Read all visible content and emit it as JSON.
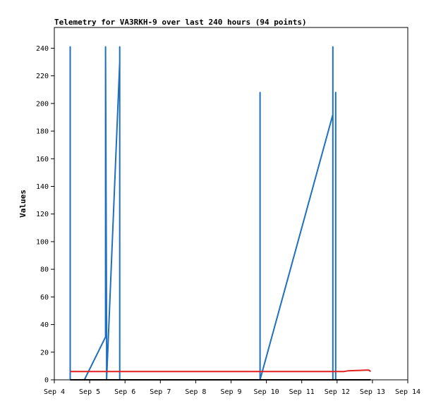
{
  "chart_data": {
    "type": "line",
    "title": "Telemetry for VA3RKH-9 over last 240 hours (94 points)",
    "xlabel": "",
    "ylabel": "Values",
    "x_ticks": [
      "Sep 4",
      "Sep 5",
      "Sep 6",
      "Sep 7",
      "Sep 8",
      "Sep 9",
      "Sep 10",
      "Sep 11",
      "Sep 12",
      "Sep 13",
      "Sep 14"
    ],
    "xlim": [
      4,
      14
    ],
    "ylim": [
      0,
      255
    ],
    "y_ticks": [
      0,
      20,
      40,
      60,
      80,
      100,
      120,
      140,
      160,
      180,
      200,
      220,
      240
    ],
    "grid": false,
    "legend": "none",
    "series": [
      {
        "color": "#1f6fbf",
        "points": [
          [
            4.45,
            0
          ],
          [
            4.45,
            241
          ],
          [
            4.45,
            0
          ],
          [
            4.85,
            0
          ],
          [
            5.45,
            31
          ],
          [
            5.45,
            241
          ],
          [
            5.48,
            31
          ],
          [
            5.48,
            0
          ],
          [
            5.85,
            230
          ],
          [
            5.85,
            241
          ],
          [
            5.85,
            0
          ],
          [
            9.82,
            0
          ],
          [
            9.82,
            208
          ],
          [
            9.82,
            0
          ],
          [
            11.88,
            192
          ],
          [
            11.88,
            241
          ],
          [
            11.88,
            0
          ],
          [
            11.96,
            0
          ],
          [
            11.96,
            208
          ],
          [
            11.96,
            0
          ],
          [
            12.95,
            0
          ]
        ]
      },
      {
        "color": "#e0201e",
        "points": [
          [
            4.45,
            6
          ],
          [
            12.2,
            6
          ],
          [
            12.3,
            6.5
          ],
          [
            12.8,
            7
          ],
          [
            12.9,
            7
          ],
          [
            12.95,
            6
          ]
        ]
      },
      {
        "color": "#000000",
        "points": [
          [
            4.45,
            0
          ],
          [
            12.95,
            0
          ]
        ]
      }
    ]
  }
}
